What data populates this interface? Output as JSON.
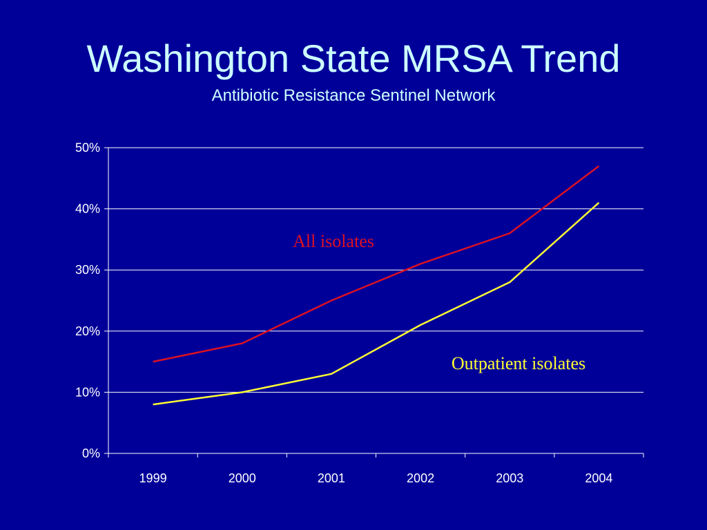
{
  "slide": {
    "title": "Washington State MRSA Trend",
    "subtitle": "Antibiotic Resistance Sentinel Network"
  },
  "chart_data": {
    "type": "line",
    "x": [
      "1999",
      "2000",
      "2001",
      "2002",
      "2003",
      "2004"
    ],
    "series": [
      {
        "name": "All isolates",
        "values": [
          15,
          18,
          25,
          31,
          36,
          47
        ],
        "color": "#dd1122"
      },
      {
        "name": "Outpatient isolates",
        "values": [
          8,
          10,
          13,
          21,
          28,
          41
        ],
        "color": "#ffff33"
      }
    ],
    "ylim": [
      0,
      50
    ],
    "yticks": [
      "0%",
      "10%",
      "20%",
      "30%",
      "40%",
      "50%"
    ],
    "ytick_values": [
      0,
      10,
      20,
      30,
      40,
      50
    ],
    "grid": true,
    "legend": "inline-annotations",
    "colors": {
      "background": "#000099",
      "axis": "#ffffff",
      "title": "#ccffff"
    }
  }
}
